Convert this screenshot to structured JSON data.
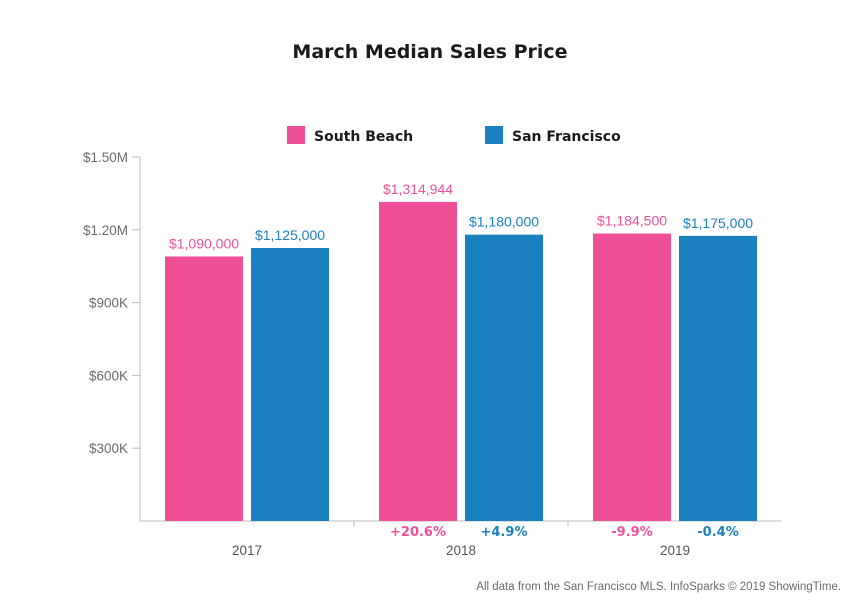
{
  "chart_data": {
    "type": "bar",
    "title": "March Median Sales Price",
    "categories": [
      "2017",
      "2018",
      "2019"
    ],
    "series": [
      {
        "name": "South Beach",
        "color": "#ef4f97",
        "values": [
          1090000,
          1314944,
          1184500
        ],
        "labels": [
          "$1,090,000",
          "$1,314,944",
          "$1,184,500"
        ],
        "changes": [
          "",
          "+20.6%",
          "-9.9%"
        ]
      },
      {
        "name": "San Francisco",
        "color": "#1a80c0",
        "values": [
          1125000,
          1180000,
          1175000
        ],
        "labels": [
          "$1,125,000",
          "$1,180,000",
          "$1,175,000"
        ],
        "changes": [
          "",
          "+4.9%",
          "-0.4%"
        ]
      }
    ],
    "yticks": [
      {
        "value": 300000,
        "label": "$300K"
      },
      {
        "value": 600000,
        "label": "$600K"
      },
      {
        "value": 900000,
        "label": "$900K"
      },
      {
        "value": 1200000,
        "label": "$1.20M"
      },
      {
        "value": 1500000,
        "label": "$1.50M"
      }
    ],
    "ylim": [
      0,
      1500000
    ],
    "xlabel": "",
    "ylabel": "",
    "grid": false,
    "legend_position": "top-center"
  },
  "footer": "All data from the San Francisco MLS. InfoSparks © 2019 ShowingTime."
}
